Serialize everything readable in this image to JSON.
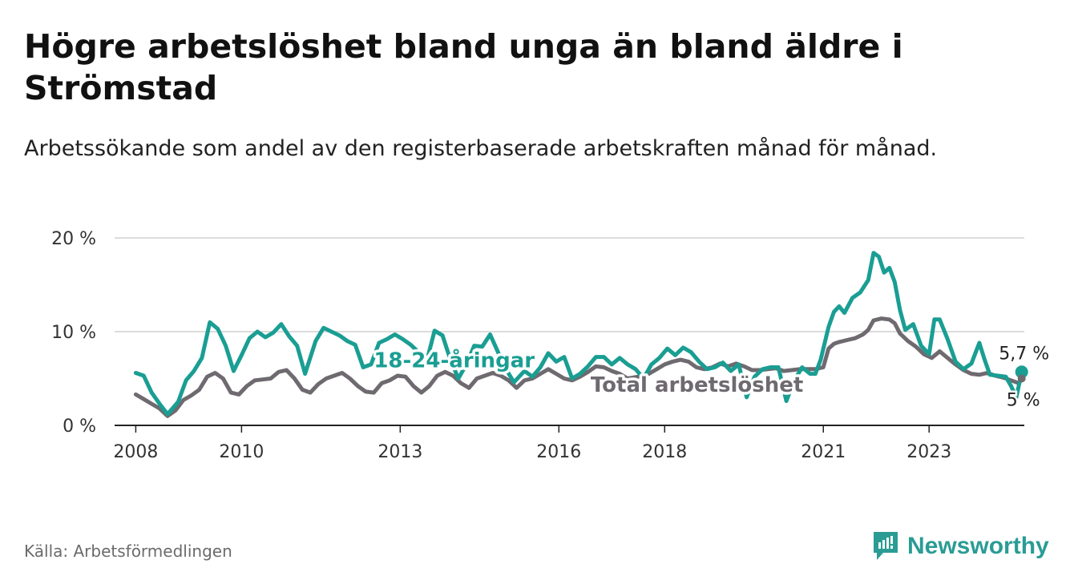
{
  "title": "Högre arbetslöshet bland unga än bland äldre i Strömstad",
  "subtitle": "Arbetssökande som andel av den registerbaserade arbetskraften månad för månad.",
  "source": "Källa: Arbetsförmedlingen",
  "brand": "Newsworthy",
  "colors": {
    "youth": "#1a9e93",
    "total": "#6e6a70",
    "grid": "#dcdcdc",
    "brand": "#2a9c94"
  },
  "chart_data": {
    "type": "line",
    "title": "Högre arbetslöshet bland unga än bland äldre i Strömstad",
    "ylabel": "",
    "xlabel": "",
    "ylim": [
      0,
      20
    ],
    "yticks": [
      {
        "value": 0,
        "label": "0 %"
      },
      {
        "value": 10,
        "label": "10 %"
      },
      {
        "value": 20,
        "label": "20 %"
      }
    ],
    "xlim": [
      2007.6,
      2024.8
    ],
    "xticks": [
      {
        "value": 2008,
        "label": "2008"
      },
      {
        "value": 2010,
        "label": "2010"
      },
      {
        "value": 2013,
        "label": "2013"
      },
      {
        "value": 2016,
        "label": "2016"
      },
      {
        "value": 2018,
        "label": "2018"
      },
      {
        "value": 2021,
        "label": "2021"
      },
      {
        "value": 2023,
        "label": "2023"
      }
    ],
    "series": [
      {
        "name": "18-24-åringar",
        "label": "18-24-åringar",
        "end_label": "5,7 %",
        "points": [
          [
            2008.0,
            5.6
          ],
          [
            2008.15,
            5.3
          ],
          [
            2008.3,
            3.5
          ],
          [
            2008.45,
            2.3
          ],
          [
            2008.6,
            1.2
          ],
          [
            2008.8,
            2.5
          ],
          [
            2008.95,
            4.8
          ],
          [
            2009.1,
            5.8
          ],
          [
            2009.25,
            7.2
          ],
          [
            2009.4,
            11.0
          ],
          [
            2009.55,
            10.3
          ],
          [
            2009.7,
            8.5
          ],
          [
            2009.85,
            5.8
          ],
          [
            2010.0,
            7.5
          ],
          [
            2010.15,
            9.3
          ],
          [
            2010.3,
            10.0
          ],
          [
            2010.45,
            9.4
          ],
          [
            2010.6,
            9.9
          ],
          [
            2010.75,
            10.8
          ],
          [
            2010.9,
            9.5
          ],
          [
            2011.05,
            8.5
          ],
          [
            2011.2,
            5.5
          ],
          [
            2011.4,
            9.0
          ],
          [
            2011.55,
            10.4
          ],
          [
            2011.7,
            10.0
          ],
          [
            2011.85,
            9.6
          ],
          [
            2012.0,
            9.0
          ],
          [
            2012.15,
            8.6
          ],
          [
            2012.3,
            6.2
          ],
          [
            2012.45,
            6.5
          ],
          [
            2012.6,
            8.8
          ],
          [
            2012.75,
            9.2
          ],
          [
            2012.9,
            9.7
          ],
          [
            2013.05,
            9.2
          ],
          [
            2013.2,
            8.6
          ],
          [
            2013.35,
            7.8
          ],
          [
            2013.5,
            6.8
          ],
          [
            2013.65,
            10.1
          ],
          [
            2013.8,
            9.6
          ],
          [
            2013.95,
            7.0
          ],
          [
            2014.1,
            5.0
          ],
          [
            2014.25,
            6.5
          ],
          [
            2014.4,
            8.5
          ],
          [
            2014.55,
            8.4
          ],
          [
            2014.7,
            9.7
          ],
          [
            2014.85,
            7.8
          ],
          [
            2015.0,
            6.0
          ],
          [
            2015.15,
            4.6
          ],
          [
            2015.35,
            5.8
          ],
          [
            2015.5,
            5.2
          ],
          [
            2015.65,
            6.2
          ],
          [
            2015.8,
            7.7
          ],
          [
            2015.95,
            6.8
          ],
          [
            2016.1,
            7.3
          ],
          [
            2016.25,
            5.0
          ],
          [
            2016.4,
            5.5
          ],
          [
            2016.55,
            6.3
          ],
          [
            2016.7,
            7.3
          ],
          [
            2016.85,
            7.3
          ],
          [
            2017.0,
            6.5
          ],
          [
            2017.15,
            7.2
          ],
          [
            2017.3,
            6.5
          ],
          [
            2017.45,
            6.0
          ],
          [
            2017.6,
            5.0
          ],
          [
            2017.75,
            6.5
          ],
          [
            2017.9,
            7.2
          ],
          [
            2018.05,
            8.2
          ],
          [
            2018.2,
            7.5
          ],
          [
            2018.35,
            8.3
          ],
          [
            2018.5,
            7.8
          ],
          [
            2018.65,
            6.8
          ],
          [
            2018.8,
            6.0
          ],
          [
            2018.95,
            6.2
          ],
          [
            2019.1,
            6.7
          ],
          [
            2019.25,
            5.8
          ],
          [
            2019.4,
            6.5
          ],
          [
            2019.55,
            3.0
          ],
          [
            2019.7,
            5.2
          ],
          [
            2019.85,
            6.0
          ],
          [
            2020.0,
            6.2
          ],
          [
            2020.15,
            6.2
          ],
          [
            2020.3,
            2.6
          ],
          [
            2020.45,
            4.8
          ],
          [
            2020.6,
            6.2
          ],
          [
            2020.75,
            5.5
          ],
          [
            2020.85,
            5.5
          ],
          [
            2020.95,
            7.0
          ],
          [
            2021.1,
            10.5
          ],
          [
            2021.2,
            12.1
          ],
          [
            2021.3,
            12.7
          ],
          [
            2021.4,
            12.0
          ],
          [
            2021.55,
            13.6
          ],
          [
            2021.7,
            14.2
          ],
          [
            2021.85,
            15.5
          ],
          [
            2021.95,
            18.4
          ],
          [
            2022.05,
            18.0
          ],
          [
            2022.15,
            16.3
          ],
          [
            2022.25,
            16.8
          ],
          [
            2022.35,
            15.3
          ],
          [
            2022.45,
            12.3
          ],
          [
            2022.55,
            10.2
          ],
          [
            2022.7,
            10.8
          ],
          [
            2022.85,
            8.5
          ],
          [
            2023.0,
            7.6
          ],
          [
            2023.1,
            11.3
          ],
          [
            2023.2,
            11.3
          ],
          [
            2023.35,
            9.2
          ],
          [
            2023.5,
            6.8
          ],
          [
            2023.65,
            6.0
          ],
          [
            2023.8,
            6.6
          ],
          [
            2023.95,
            8.8
          ],
          [
            2024.05,
            7.0
          ],
          [
            2024.15,
            5.4
          ],
          [
            2024.3,
            5.3
          ],
          [
            2024.45,
            5.2
          ],
          [
            2024.55,
            4.2
          ],
          [
            2024.65,
            3.0
          ],
          [
            2024.75,
            5.7
          ]
        ]
      },
      {
        "name": "Total arbetslöshet",
        "label": "Total arbetslöshet",
        "end_label": "5 %",
        "points": [
          [
            2008.0,
            3.3
          ],
          [
            2008.15,
            2.8
          ],
          [
            2008.3,
            2.3
          ],
          [
            2008.45,
            1.8
          ],
          [
            2008.6,
            1.0
          ],
          [
            2008.75,
            1.6
          ],
          [
            2008.9,
            2.7
          ],
          [
            2009.05,
            3.2
          ],
          [
            2009.2,
            3.8
          ],
          [
            2009.35,
            5.2
          ],
          [
            2009.5,
            5.6
          ],
          [
            2009.65,
            5.0
          ],
          [
            2009.8,
            3.5
          ],
          [
            2009.95,
            3.3
          ],
          [
            2010.1,
            4.2
          ],
          [
            2010.25,
            4.8
          ],
          [
            2010.4,
            4.9
          ],
          [
            2010.55,
            5.0
          ],
          [
            2010.7,
            5.7
          ],
          [
            2010.85,
            5.9
          ],
          [
            2011.0,
            5.0
          ],
          [
            2011.15,
            3.8
          ],
          [
            2011.3,
            3.5
          ],
          [
            2011.45,
            4.4
          ],
          [
            2011.6,
            5.0
          ],
          [
            2011.75,
            5.3
          ],
          [
            2011.9,
            5.6
          ],
          [
            2012.05,
            5.0
          ],
          [
            2012.2,
            4.2
          ],
          [
            2012.35,
            3.6
          ],
          [
            2012.5,
            3.5
          ],
          [
            2012.65,
            4.5
          ],
          [
            2012.8,
            4.8
          ],
          [
            2012.95,
            5.3
          ],
          [
            2013.1,
            5.2
          ],
          [
            2013.25,
            4.2
          ],
          [
            2013.4,
            3.5
          ],
          [
            2013.55,
            4.2
          ],
          [
            2013.7,
            5.3
          ],
          [
            2013.85,
            5.7
          ],
          [
            2014.0,
            5.3
          ],
          [
            2014.15,
            4.5
          ],
          [
            2014.3,
            4.0
          ],
          [
            2014.45,
            5.0
          ],
          [
            2014.6,
            5.3
          ],
          [
            2014.75,
            5.6
          ],
          [
            2014.9,
            5.3
          ],
          [
            2015.05,
            4.8
          ],
          [
            2015.2,
            4.0
          ],
          [
            2015.35,
            4.8
          ],
          [
            2015.5,
            5.0
          ],
          [
            2015.65,
            5.5
          ],
          [
            2015.8,
            6.0
          ],
          [
            2015.95,
            5.5
          ],
          [
            2016.1,
            5.0
          ],
          [
            2016.25,
            4.8
          ],
          [
            2016.4,
            5.2
          ],
          [
            2016.55,
            5.7
          ],
          [
            2016.7,
            6.3
          ],
          [
            2016.85,
            6.2
          ],
          [
            2017.0,
            5.8
          ],
          [
            2017.15,
            5.5
          ],
          [
            2017.3,
            5.0
          ],
          [
            2017.5,
            5.2
          ],
          [
            2017.7,
            5.5
          ],
          [
            2017.85,
            6.0
          ],
          [
            2018.0,
            6.5
          ],
          [
            2018.15,
            6.8
          ],
          [
            2018.3,
            7.0
          ],
          [
            2018.45,
            6.8
          ],
          [
            2018.6,
            6.2
          ],
          [
            2018.75,
            6.0
          ],
          [
            2018.9,
            6.2
          ],
          [
            2019.05,
            6.6
          ],
          [
            2019.2,
            6.3
          ],
          [
            2019.35,
            6.6
          ],
          [
            2019.5,
            6.3
          ],
          [
            2019.65,
            5.9
          ],
          [
            2019.8,
            5.9
          ],
          [
            2019.95,
            6.0
          ],
          [
            2020.1,
            6.1
          ],
          [
            2020.25,
            5.8
          ],
          [
            2020.4,
            5.9
          ],
          [
            2020.55,
            6.0
          ],
          [
            2020.7,
            6.0
          ],
          [
            2020.85,
            6.0
          ],
          [
            2021.0,
            6.2
          ],
          [
            2021.1,
            8.2
          ],
          [
            2021.2,
            8.7
          ],
          [
            2021.3,
            8.9
          ],
          [
            2021.45,
            9.1
          ],
          [
            2021.6,
            9.3
          ],
          [
            2021.75,
            9.7
          ],
          [
            2021.85,
            10.2
          ],
          [
            2021.95,
            11.2
          ],
          [
            2022.1,
            11.4
          ],
          [
            2022.25,
            11.3
          ],
          [
            2022.35,
            10.9
          ],
          [
            2022.45,
            9.8
          ],
          [
            2022.6,
            9.0
          ],
          [
            2022.75,
            8.4
          ],
          [
            2022.9,
            7.6
          ],
          [
            2023.05,
            7.2
          ],
          [
            2023.2,
            7.9
          ],
          [
            2023.35,
            7.2
          ],
          [
            2023.5,
            6.5
          ],
          [
            2023.65,
            5.9
          ],
          [
            2023.8,
            5.5
          ],
          [
            2023.95,
            5.4
          ],
          [
            2024.1,
            5.6
          ],
          [
            2024.25,
            5.3
          ],
          [
            2024.4,
            5.1
          ],
          [
            2024.55,
            4.8
          ],
          [
            2024.7,
            4.5
          ],
          [
            2024.75,
            5.0
          ]
        ]
      }
    ]
  }
}
